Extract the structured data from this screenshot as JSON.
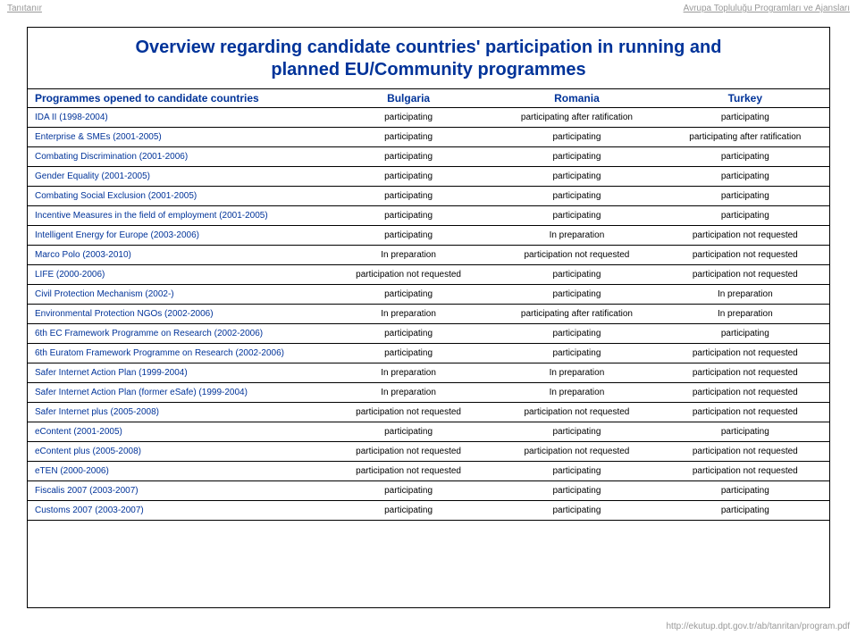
{
  "header": {
    "left": "Tanıtanır",
    "right": "Avrupa Topluluğu Programları ve Ajansları"
  },
  "footer": "http://ekutup.dpt.gov.tr/ab/tanritan/program.pdf",
  "title_line1": "Overview regarding candidate countries' participation in running and",
  "title_line2": "planned EU/Community programmes",
  "columns": {
    "prog": "Programmes opened to candidate countries",
    "c1": "Bulgaria",
    "c2": "Romania",
    "c3": "Turkey"
  },
  "rows": [
    {
      "prog": "IDA II (1998-2004)",
      "c1": "participating",
      "c2": "participating after ratification",
      "c3": "participating"
    },
    {
      "prog": "Enterprise & SMEs (2001-2005)",
      "c1": "participating",
      "c2": "participating",
      "c3": "participating after ratification"
    },
    {
      "prog": "Combating Discrimination (2001-2006)",
      "c1": "participating",
      "c2": "participating",
      "c3": "participating"
    },
    {
      "prog": "Gender Equality (2001-2005)",
      "c1": "participating",
      "c2": "participating",
      "c3": "participating"
    },
    {
      "prog": "Combating Social Exclusion (2001-2005)",
      "c1": "participating",
      "c2": "participating",
      "c3": "participating"
    },
    {
      "prog": "Incentive Measures in the field of employment (2001-2005)",
      "c1": "participating",
      "c2": "participating",
      "c3": "participating"
    },
    {
      "prog": "Intelligent Energy for Europe (2003-2006)",
      "c1": "participating",
      "c2": "In preparation",
      "c3": "participation not requested"
    },
    {
      "prog": "Marco Polo (2003-2010)",
      "c1": "In preparation",
      "c2": "participation not requested",
      "c3": "participation not requested"
    },
    {
      "prog": "LIFE (2000-2006)",
      "c1": "participation not requested",
      "c2": "participating",
      "c3": "participation not requested"
    },
    {
      "prog": "Civil Protection Mechanism (2002-)",
      "c1": "participating",
      "c2": "participating",
      "c3": "In preparation"
    },
    {
      "prog": "Environmental Protection NGOs (2002-2006)",
      "c1": "In preparation",
      "c2": "participating after ratification",
      "c3": "In preparation"
    },
    {
      "prog": "6th EC Framework Programme on Research (2002-2006)",
      "c1": "participating",
      "c2": "participating",
      "c3": "participating"
    },
    {
      "prog": "6th Euratom Framework Programme on Research (2002-2006)",
      "c1": "participating",
      "c2": "participating",
      "c3": "participation not requested"
    },
    {
      "prog": "Safer Internet Action Plan  (1999-2004)",
      "c1": "In preparation",
      "c2": "In preparation",
      "c3": "participation not requested"
    },
    {
      "prog": "Safer Internet Action Plan (former eSafe) (1999-2004)",
      "c1": "In preparation",
      "c2": "In preparation",
      "c3": "participation not requested"
    },
    {
      "prog": "Safer Internet plus (2005-2008)",
      "c1": "participation not requested",
      "c2": "participation not requested",
      "c3": "participation not requested"
    },
    {
      "prog": "eContent (2001-2005)",
      "c1": "participating",
      "c2": "participating",
      "c3": "participating"
    },
    {
      "prog": "eContent plus (2005-2008)",
      "c1": "participation not requested",
      "c2": "participation not requested",
      "c3": "participation not requested"
    },
    {
      "prog": "eTEN (2000-2006)",
      "c1": "participation not requested",
      "c2": "participating",
      "c3": "participation not requested"
    },
    {
      "prog": "Fiscalis 2007 (2003-2007)",
      "c1": "participating",
      "c2": "participating",
      "c3": "participating"
    },
    {
      "prog": "Customs 2007 (2003-2007)",
      "c1": "participating",
      "c2": "participating",
      "c3": "participating"
    }
  ],
  "colors": {
    "brand": "#003399",
    "text": "#000000",
    "header_grey": "#999999",
    "rule": "#000000",
    "background": "#ffffff"
  }
}
